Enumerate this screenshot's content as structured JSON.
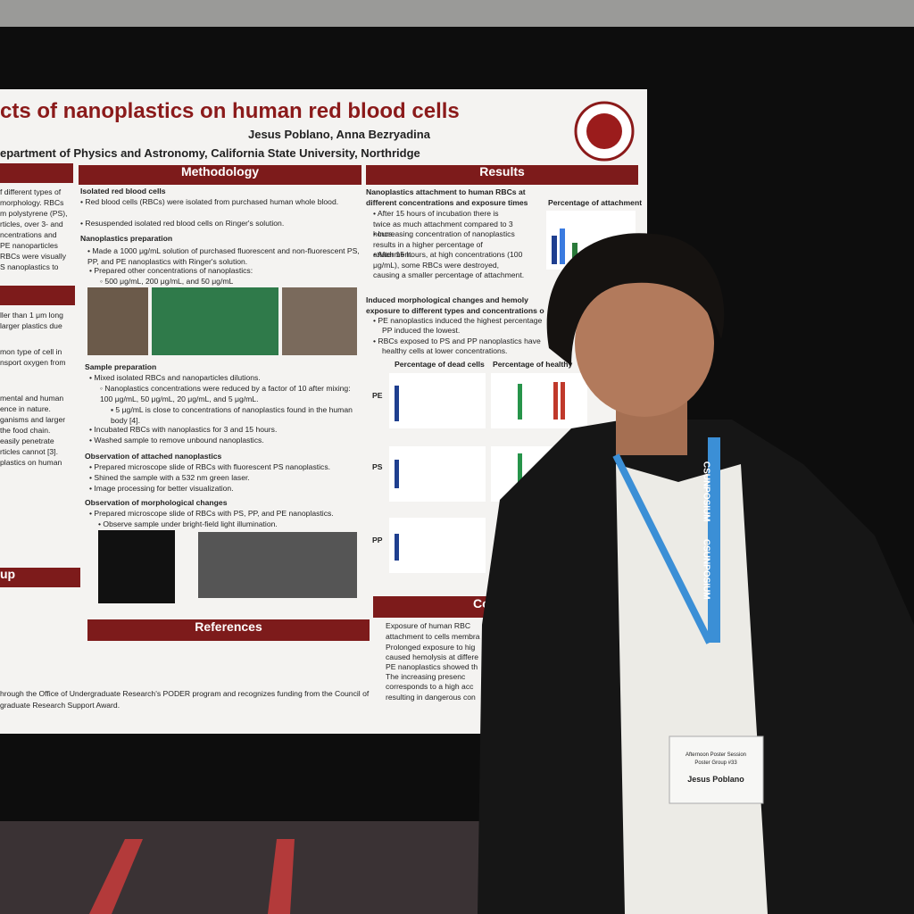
{
  "poster": {
    "title": "cts of nanoplastics on human red blood cells",
    "authors": "Jesus Poblano, Anna Bezryadina",
    "affiliation": "epartment of Physics and Astronomy, California State University, Northridge",
    "left_column": [
      "f different types of",
      "morphology. RBCs",
      "m polystyrene (PS),",
      "rticles, over 3- and",
      "ncentrations and",
      "PE nanoparticles",
      "RBCs were visually",
      "S nanoplastics to",
      "ller than 1 μm long",
      "larger plastics due",
      "mon type of cell in",
      "nsport oxygen from",
      "mental and human",
      "ence in nature.",
      "ganisms and larger",
      "the food chain.",
      "easily penetrate",
      "rticles cannot [3].",
      "plastics on human"
    ],
    "group_heading": "up",
    "methodology": {
      "heading": "Methodology",
      "lines": [
        "Isolated red blood cells",
        "• Red blood cells (RBCs) were isolated from purchased human whole blood.",
        "• Resuspended isolated red blood cells on Ringer's solution.",
        "Nanoplastics preparation",
        "• Made a 1000 μg/mL solution of purchased fluorescent and non-fluorescent PS, PP, and PE nanoplastics with Ringer's solution.",
        "• Prepared other concentrations of nanoplastics:",
        "◦ 500 μg/mL, 200 μg/mL, and 50 μg/mL",
        "Sample preparation",
        "• Mixed isolated RBCs and nanoparticles dilutions.",
        "◦ Nanoplastics concentrations were reduced by a factor of 10 after mixing: 100 μg/mL, 50 μg/mL, 20 μg/mL, and 5 μg/mL.",
        "▪ 5 μg/mL is close to concentrations of nanoplastics found in the human body [4].",
        "• Incubated RBCs with nanoplastics for 3 and 15 hours.",
        "• Washed sample to remove unbound nanoplastics.",
        "Observation of attached nanoplastics",
        "• Prepared microscope slide of RBCs with fluorescent PS nanoplastics.",
        "• Shined the sample with a 532 nm green laser.",
        "• Image processing for better visualization.",
        "Observation of morphological changes",
        "• Prepared microscope slide of RBCs with PS, PP, and PE nanoplastics.",
        "• Observe sample under bright-field light illumination."
      ]
    },
    "results": {
      "heading": "Results",
      "lines": [
        "Nanoplastics attachment to human RBCs at different concentrations and exposure times",
        "• After 15 hours of incubation there is twice as much attachment compared to 3 hours.",
        "• Increasing concentration of nanoplastics results in a higher percentage of attachment.",
        "• After 15 hours, at high concentrations (100 μg/mL), some RBCs were destroyed, causing a smaller percentage of attachment.",
        "Induced morphological changes and hemoly",
        "exposure to different types and concentrations o",
        "• PE nanoplastics induced the highest percentage",
        "PP induced the lowest.",
        "• RBCs exposed to PS and PP nanoplastics have",
        "healthy cells at lower concentrations."
      ]
    },
    "chart_titles": [
      "Percentage of attachment",
      "Percentage of dead cells",
      "Percentage of healthy"
    ],
    "chart_labels": [
      "PE",
      "PS",
      "PP"
    ],
    "references": {
      "heading": "References"
    },
    "conclusions": {
      "heading": "Co",
      "lines": [
        "Exposure of human RBC",
        "attachment to cells membra",
        "Prolonged exposure to hig",
        "caused hemolysis at differe",
        "PE nanoplastics showed th",
        "The increasing presenc",
        "corresponds to a high acc",
        "resulting in dangerous con"
      ]
    },
    "acknowledgment": [
      "hrough the Office of Undergraduate Research's PODER program and recognizes funding from the Council of",
      "graduate Research Support Award."
    ]
  },
  "badge": {
    "session": "Afternoon Poster Session",
    "group": "Poster Group #33",
    "name": "Jesus Poblano"
  },
  "lanyard": "CSUNPOSIUM"
}
